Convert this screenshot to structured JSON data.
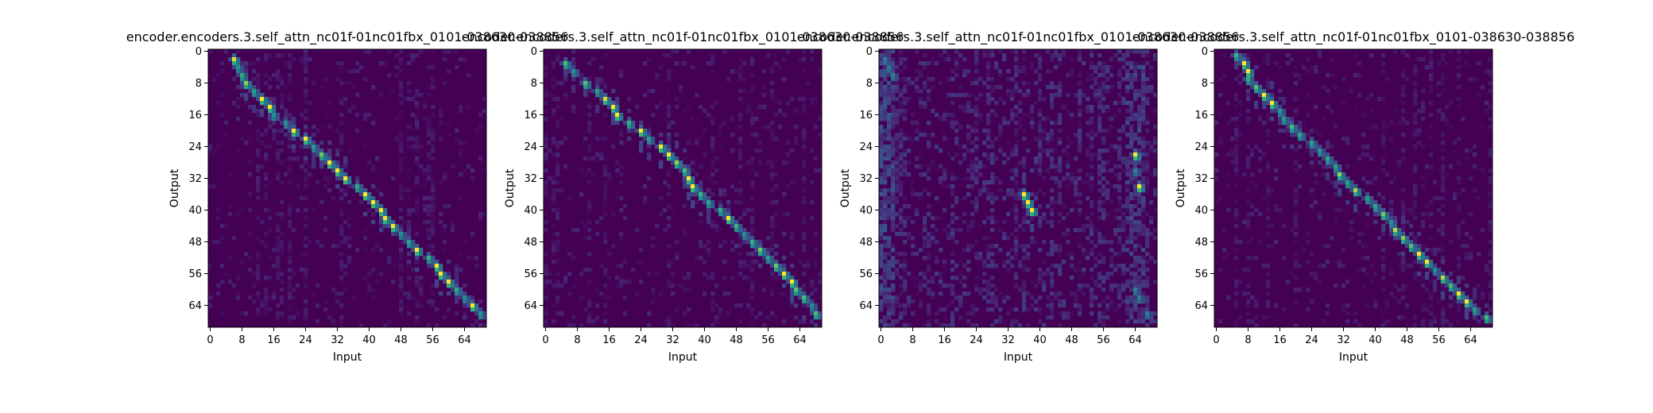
{
  "chart_data": [
    {
      "type": "heatmap",
      "title": "encoder.encoders.3.self_attn_nc01f-01nc01fbx_0101-038630-038856",
      "xlabel": "Input",
      "ylabel": "Output",
      "x_ticks": [
        0,
        8,
        16,
        24,
        32,
        40,
        48,
        56,
        64
      ],
      "y_ticks": [
        0,
        8,
        16,
        24,
        32,
        40,
        48,
        56,
        64
      ],
      "xlim": [
        0,
        70
      ],
      "ylim": [
        0,
        70
      ],
      "colormap": "viridis",
      "pattern": "diagonal-clusters",
      "alignment": [
        [
          2,
          6
        ],
        [
          4,
          7
        ],
        [
          6,
          8
        ],
        [
          8,
          9
        ],
        [
          10,
          11
        ],
        [
          12,
          13
        ],
        [
          14,
          15
        ],
        [
          16,
          16
        ],
        [
          18,
          19
        ],
        [
          20,
          21
        ],
        [
          22,
          24
        ],
        [
          24,
          26
        ],
        [
          26,
          28
        ],
        [
          28,
          30
        ],
        [
          30,
          32
        ],
        [
          32,
          34
        ],
        [
          34,
          37
        ],
        [
          36,
          39
        ],
        [
          38,
          41
        ],
        [
          40,
          43
        ],
        [
          42,
          44
        ],
        [
          44,
          46
        ],
        [
          46,
          48
        ],
        [
          48,
          50
        ],
        [
          50,
          52
        ],
        [
          52,
          55
        ],
        [
          54,
          57
        ],
        [
          56,
          58
        ],
        [
          58,
          60
        ],
        [
          60,
          62
        ],
        [
          62,
          64
        ],
        [
          64,
          66
        ],
        [
          66,
          68
        ]
      ]
    },
    {
      "type": "heatmap",
      "title": "encoder.encoders.3.self_attn_nc01f-01nc01fbx_0101-038630-038856",
      "xlabel": "Input",
      "ylabel": "Output",
      "x_ticks": [
        0,
        8,
        16,
        24,
        32,
        40,
        48,
        56,
        64
      ],
      "y_ticks": [
        0,
        8,
        16,
        24,
        32,
        40,
        48,
        56,
        64
      ],
      "xlim": [
        0,
        70
      ],
      "ylim": [
        0,
        70
      ],
      "colormap": "viridis",
      "pattern": "diagonal",
      "alignment": [
        [
          3,
          5
        ],
        [
          5,
          7
        ],
        [
          8,
          10
        ],
        [
          10,
          13
        ],
        [
          12,
          15
        ],
        [
          14,
          17
        ],
        [
          16,
          18
        ],
        [
          18,
          21
        ],
        [
          20,
          24
        ],
        [
          22,
          26
        ],
        [
          24,
          29
        ],
        [
          26,
          31
        ],
        [
          28,
          33
        ],
        [
          30,
          35
        ],
        [
          32,
          36
        ],
        [
          34,
          37
        ],
        [
          36,
          39
        ],
        [
          38,
          41
        ],
        [
          40,
          44
        ],
        [
          42,
          46
        ],
        [
          44,
          48
        ],
        [
          46,
          50
        ],
        [
          48,
          52
        ],
        [
          50,
          54
        ],
        [
          52,
          56
        ],
        [
          54,
          58
        ],
        [
          56,
          60
        ],
        [
          58,
          62
        ],
        [
          60,
          63
        ],
        [
          62,
          65
        ],
        [
          64,
          67
        ],
        [
          66,
          68
        ]
      ]
    },
    {
      "type": "heatmap",
      "title": "encoder.encoders.3.self_attn_nc01f-01nc01fbx_0101-038630-038856",
      "xlabel": "Input",
      "ylabel": "Output",
      "x_ticks": [
        0,
        8,
        16,
        24,
        32,
        40,
        48,
        56,
        64
      ],
      "y_ticks": [
        0,
        8,
        16,
        24,
        32,
        40,
        48,
        56,
        64
      ],
      "xlim": [
        0,
        70
      ],
      "ylim": [
        0,
        70
      ],
      "colormap": "viridis",
      "pattern": "diffuse",
      "alignment": [
        [
          2,
          1
        ],
        [
          4,
          2
        ],
        [
          6,
          3
        ],
        [
          36,
          36
        ],
        [
          38,
          37
        ],
        [
          40,
          38
        ],
        [
          26,
          64
        ],
        [
          30,
          64
        ],
        [
          34,
          65
        ],
        [
          60,
          64
        ],
        [
          62,
          65
        ],
        [
          66,
          67
        ]
      ]
    },
    {
      "type": "heatmap",
      "title": "encoder.encoders.3.self_attn_nc01f-01nc01fbx_0101-038630-038856",
      "xlabel": "Input",
      "ylabel": "Output",
      "x_ticks": [
        0,
        8,
        16,
        24,
        32,
        40,
        48,
        56,
        64
      ],
      "y_ticks": [
        0,
        8,
        16,
        24,
        32,
        40,
        48,
        56,
        64
      ],
      "xlim": [
        0,
        70
      ],
      "ylim": [
        0,
        70
      ],
      "colormap": "viridis",
      "pattern": "diagonal",
      "alignment": [
        [
          1,
          5
        ],
        [
          3,
          7
        ],
        [
          5,
          8
        ],
        [
          7,
          8
        ],
        [
          9,
          10
        ],
        [
          11,
          12
        ],
        [
          13,
          14
        ],
        [
          15,
          16
        ],
        [
          17,
          17
        ],
        [
          19,
          19
        ],
        [
          21,
          21
        ],
        [
          23,
          24
        ],
        [
          25,
          26
        ],
        [
          27,
          28
        ],
        [
          29,
          30
        ],
        [
          31,
          31
        ],
        [
          33,
          33
        ],
        [
          35,
          35
        ],
        [
          37,
          38
        ],
        [
          39,
          40
        ],
        [
          41,
          42
        ],
        [
          43,
          44
        ],
        [
          45,
          45
        ],
        [
          47,
          47
        ],
        [
          49,
          49
        ],
        [
          51,
          51
        ],
        [
          53,
          53
        ],
        [
          55,
          55
        ],
        [
          57,
          57
        ],
        [
          59,
          59
        ],
        [
          61,
          61
        ],
        [
          63,
          63
        ],
        [
          65,
          65
        ],
        [
          67,
          68
        ]
      ]
    }
  ]
}
